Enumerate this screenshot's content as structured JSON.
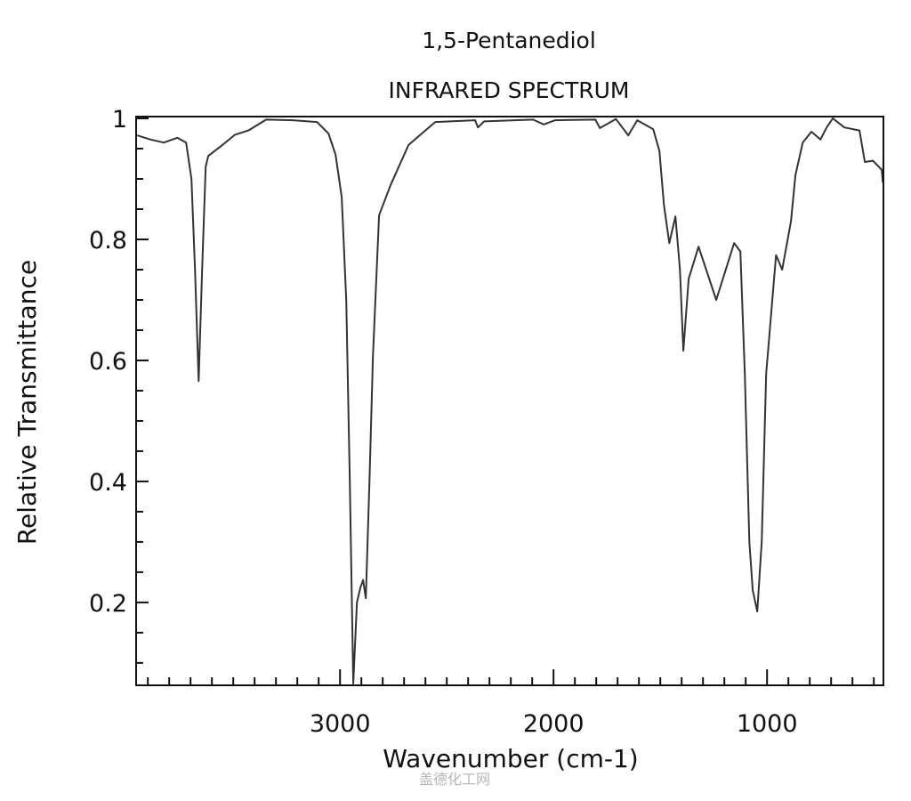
{
  "chart_data": {
    "type": "line",
    "title": "1,5-Pentanediol",
    "subtitle": "INFRARED SPECTRUM",
    "xlabel": "Wavenumber (cm-1)",
    "ylabel": "Relative Transmittance",
    "xlim": [
      3955,
      455
    ],
    "x_reversed": true,
    "ylim": [
      0.063,
      1.003
    ],
    "x_major_ticks": [
      3000,
      2000,
      1000
    ],
    "x_tick_labels": [
      "3000",
      "2000",
      "1000"
    ],
    "x_minor_tick_step": 100,
    "y_major_ticks": [
      0.2,
      0.4,
      0.6,
      0.8,
      1
    ],
    "y_tick_labels": [
      "0.2",
      "0.4",
      "0.6",
      "0.8",
      "1"
    ],
    "y_minor_tick_step": 0.05,
    "grid": false,
    "line_color": "#333333",
    "series": [
      {
        "x": [
          3950,
          3888,
          3825,
          3762,
          3721,
          3696,
          3679,
          3662,
          3646,
          3629,
          3617,
          3554,
          3492,
          3429,
          3346,
          3221,
          3108,
          3054,
          3021,
          2992,
          2971,
          2954,
          2938,
          2921,
          2904,
          2892,
          2879,
          2862,
          2846,
          2817,
          2763,
          2679,
          2554,
          2367,
          2354,
          2325,
          2096,
          2046,
          1992,
          1804,
          1783,
          1708,
          1650,
          1608,
          1533,
          1504,
          1483,
          1458,
          1429,
          1408,
          1392,
          1367,
          1321,
          1238,
          1154,
          1125,
          1104,
          1083,
          1067,
          1046,
          1025,
          1004,
          958,
          929,
          888,
          867,
          833,
          792,
          750,
          721,
          692,
          638,
          567,
          542,
          504,
          463,
          458
        ],
        "y": [
          0.972,
          0.965,
          0.96,
          0.968,
          0.96,
          0.9,
          0.75,
          0.566,
          0.75,
          0.92,
          0.938,
          0.955,
          0.973,
          0.98,
          0.998,
          0.997,
          0.994,
          0.975,
          0.94,
          0.87,
          0.7,
          0.4,
          0.066,
          0.2,
          0.225,
          0.237,
          0.207,
          0.4,
          0.607,
          0.84,
          0.89,
          0.956,
          0.994,
          0.997,
          0.985,
          0.995,
          0.998,
          0.99,
          0.997,
          0.998,
          0.984,
          0.999,
          0.972,
          0.997,
          0.982,
          0.946,
          0.857,
          0.794,
          0.838,
          0.75,
          0.616,
          0.735,
          0.788,
          0.7,
          0.794,
          0.78,
          0.578,
          0.3,
          0.22,
          0.185,
          0.3,
          0.578,
          0.774,
          0.75,
          0.83,
          0.906,
          0.96,
          0.978,
          0.965,
          0.985,
          1.0,
          0.985,
          0.98,
          0.928,
          0.93,
          0.915,
          0.894
        ]
      }
    ]
  },
  "watermark": "盖德化工网"
}
